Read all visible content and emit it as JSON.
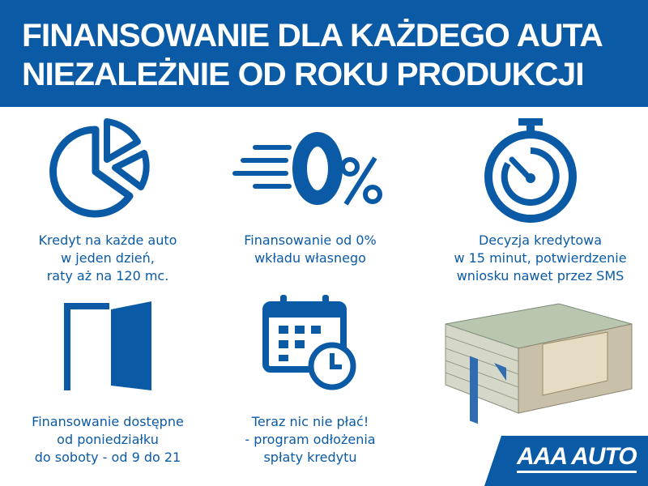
{
  "header": {
    "line1": "FINANSOWANIE DLA KAŻDEGO AUTA",
    "line2": "NIEZALEŻNIE OD ROKU PRODUKCJI"
  },
  "features": [
    {
      "icon": "pie-chart-icon",
      "lines": [
        "Kredyt na każde auto",
        "w jeden dzień,",
        "raty aż na 120 mc."
      ]
    },
    {
      "icon": "zero-percent-icon",
      "lines": [
        "Finansowanie od 0%",
        "wkładu własnego"
      ]
    },
    {
      "icon": "stopwatch-icon",
      "lines": [
        "Decyzja kredytowa",
        "w 15 minut, potwierdzenie",
        "wniosku nawet przez SMS"
      ]
    },
    {
      "icon": "open-door-icon",
      "lines": [
        "Finansowanie dostępne",
        "od poniedziałku",
        "do soboty - od 9 do 21"
      ]
    },
    {
      "icon": "calendar-clock-icon",
      "lines": [
        "Teraz nic nie płać!",
        "- program odłożenia",
        "spłaty kredytu"
      ]
    }
  ],
  "brand": {
    "logo": "AAA AUTO",
    "color": "#0b5aa6"
  }
}
